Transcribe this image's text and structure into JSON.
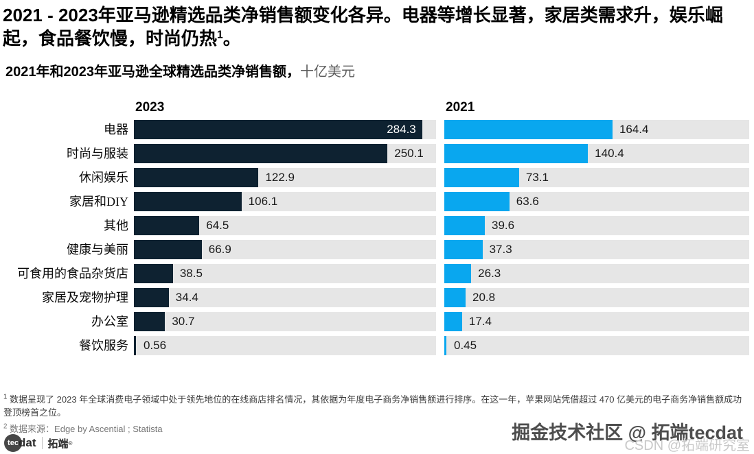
{
  "header": {
    "title_main": "2021 - 2023年亚马逊精选品类净销售额变化各异。电器等增长显著，家居类需求升，娱乐崛起，食品餐饮慢，时尚仍热",
    "title_sup": "1",
    "title_tail": "。",
    "subtitle_bold": "2021年和2023年亚马逊全球精选品类净销售额，",
    "subtitle_unit": "十亿美元"
  },
  "chart_data": {
    "type": "bar",
    "orientation": "horizontal",
    "layout": "two side-by-side panels sharing category axis; 2023 panel left (dark navy), 2021 panel right (light blue); full-width gray tracks; value labels at bar ends",
    "unit": "十亿美元 (billion USD)",
    "categories": [
      "电器",
      "时尚与服装",
      "休闲娱乐",
      "家居和DIY",
      "其他",
      "健康与美丽",
      "可食用的食品杂货店",
      "家居及宠物护理",
      "办公室",
      "餐饮服务"
    ],
    "series": [
      {
        "name": "2023",
        "color": "#0e2231",
        "values": [
          284.3,
          250.1,
          122.9,
          106.1,
          64.5,
          66.9,
          38.5,
          34.4,
          30.7,
          0.56
        ]
      },
      {
        "name": "2021",
        "color": "#09a7ef",
        "values": [
          164.4,
          140.4,
          73.1,
          63.6,
          39.6,
          37.3,
          26.3,
          20.8,
          17.4,
          0.45
        ]
      }
    ],
    "xmax": 298,
    "track_color": "#e6e6e6"
  },
  "footnotes": {
    "note1_sup": "1",
    "note1_text": " 数据呈现了 2023 年全球消费电子领域中处于领先地位的在线商店排名情况，其依据为年度电子商务净销售额进行排序。在这一年，苹果网站凭借超过 470 亿美元的电子商务净销售额成功登顶榜首之位。",
    "note2_sup": "2",
    "note2_text": " 数据来源：Edge by Ascential ; Statista"
  },
  "footer": {
    "logo_tec": "tec",
    "logo_dat": "dat",
    "logo_cn": "拓端",
    "logo_reg": "®"
  },
  "watermarks": {
    "wm1": "掘金技术社区 @ 拓端tecdat",
    "wm2": "CSDN @拓端研究室"
  }
}
